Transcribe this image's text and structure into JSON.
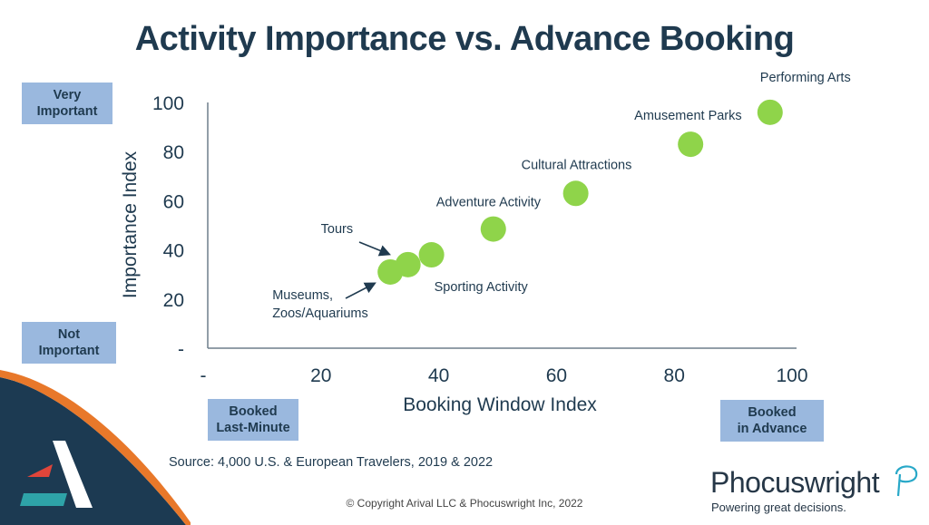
{
  "header": {
    "title": "Activity Importance vs. Advance Booking"
  },
  "callouts": {
    "very_important": [
      "Very",
      "Important"
    ],
    "not_important": [
      "Not",
      "Important"
    ],
    "booked_last_minute": [
      "Booked",
      "Last-Minute"
    ],
    "booked_in_advance": [
      "Booked",
      "in Advance"
    ]
  },
  "footer": {
    "source": "Source: 4,000 U.S. & European Travelers, 2019 & 2022",
    "copyright": "© Copyright Arival LLC & Phocuswright Inc, 2022",
    "brand": "Phocuswright",
    "tagline": "Powering great decisions."
  },
  "colors": {
    "point": "#8fd44a",
    "callout_bg": "#9ab8de",
    "text": "#1f3a4f",
    "corner_blue": "#1c3a52",
    "corner_orange": "#e8782a"
  },
  "chart_data": {
    "type": "scatter",
    "xlabel": "Booking Window Index",
    "ylabel": "Importance Index",
    "xlim": [
      0,
      100
    ],
    "ylim": [
      0,
      100
    ],
    "x_ticks": [
      0,
      20,
      40,
      60,
      80,
      100
    ],
    "x_tick_labels": [
      "-",
      "20",
      "40",
      "60",
      "80",
      "100"
    ],
    "y_ticks": [
      0,
      20,
      40,
      60,
      80,
      100
    ],
    "y_tick_labels": [
      "-",
      "20",
      "40",
      "60",
      "80",
      "100"
    ],
    "points": [
      {
        "label": "Museums, Zoos/Aquariums",
        "label_lines": [
          "Museums,",
          "Zoos/Aquariums"
        ],
        "x": 31,
        "y": 31
      },
      {
        "label": "Tours",
        "label_lines": [
          "Tours"
        ],
        "x": 34,
        "y": 34
      },
      {
        "label": "Sporting Activity",
        "label_lines": [
          "Sporting Activity"
        ],
        "x": 38,
        "y": 38
      },
      {
        "label": "Adventure Activity",
        "label_lines": [
          "Adventure Activity"
        ],
        "x": 48.5,
        "y": 48.5
      },
      {
        "label": "Cultural Attractions",
        "label_lines": [
          "Cultural Attractions"
        ],
        "x": 62.5,
        "y": 63
      },
      {
        "label": "Amusement Parks",
        "label_lines": [
          "Amusement Parks"
        ],
        "x": 82,
        "y": 83
      },
      {
        "label": "Performing Arts",
        "label_lines": [
          "Performing Arts"
        ],
        "x": 95.5,
        "y": 96
      }
    ]
  }
}
